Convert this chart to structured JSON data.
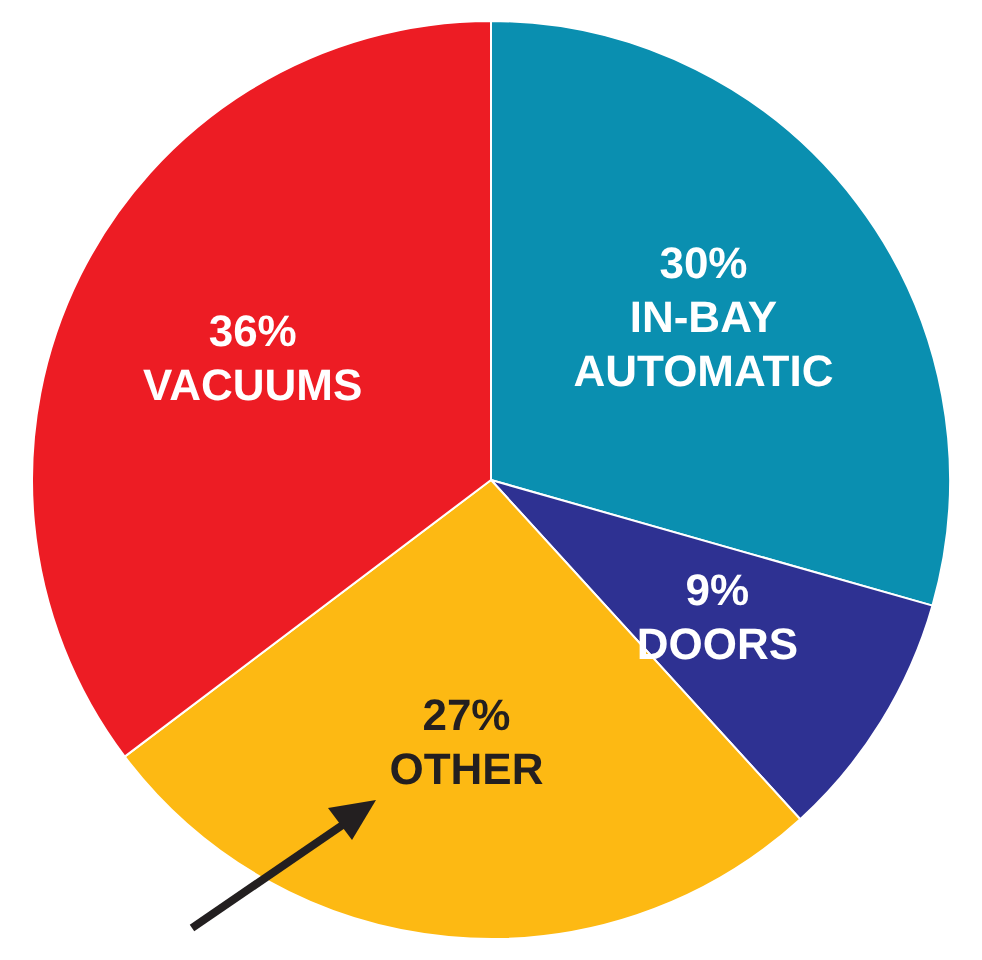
{
  "chart_data": {
    "type": "pie",
    "categories": [
      "IN-BAY AUTOMATIC",
      "DOORS",
      "OTHER",
      "VACUUMS"
    ],
    "values": [
      30,
      9,
      27,
      36
    ],
    "value_labels": [
      "30%",
      "9%",
      "27%",
      "36%"
    ],
    "colors": [
      "#0a8fb0",
      "#2e3192",
      "#fdb913",
      "#ed1c24"
    ],
    "legend": false
  }
}
